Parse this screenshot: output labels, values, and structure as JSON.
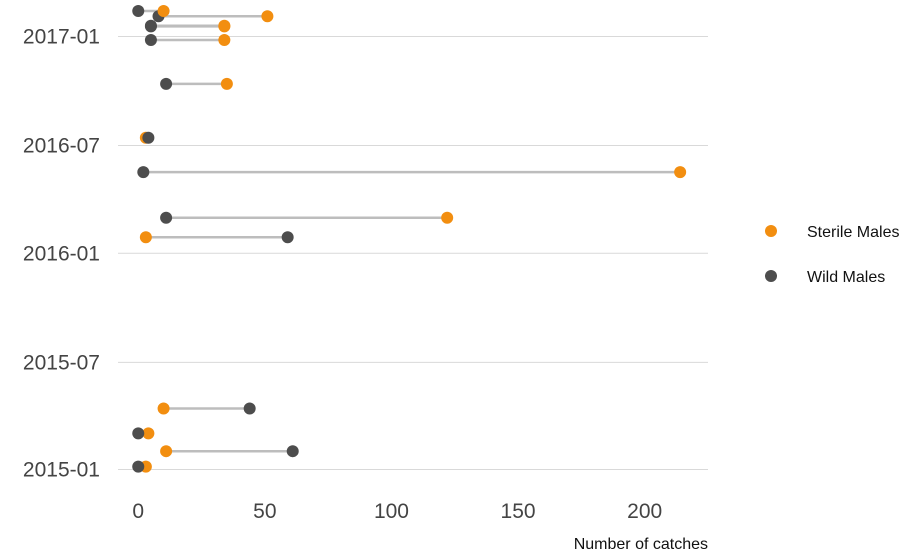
{
  "chart_data": {
    "type": "scatter",
    "subtype": "dumbbell",
    "title": "",
    "xlabel": "Number of catches",
    "ylabel": "",
    "xlim": [
      -8,
      225
    ],
    "xticks": [
      0,
      50,
      100,
      150,
      200
    ],
    "ylim": [
      "2014-12-11",
      "2017-02-18"
    ],
    "yticks": [
      "2015-01-01",
      "2015-07-01",
      "2016-01-01",
      "2016-07-01",
      "2017-01-01"
    ],
    "ytick_labels": [
      "2015-01",
      "2015-07",
      "2016-01",
      "2016-07",
      "2017-01"
    ],
    "grid": "horizontal",
    "legend_position": "right",
    "series": [
      {
        "name": "Sterile Males",
        "key": "sterile",
        "color": "#f28e10"
      },
      {
        "name": "Wild Males",
        "key": "wild",
        "color": "#4d4d4d"
      }
    ],
    "connector_color": "#bdbdbd",
    "dates": [
      "2015-01-06",
      "2015-02-01",
      "2015-03-03",
      "2015-04-14",
      "2016-01-28",
      "2016-03-01",
      "2016-05-17",
      "2016-07-14",
      "2016-10-13",
      "2016-12-26",
      "2017-01-18",
      "2017-01-19",
      "2017-02-04",
      "2017-02-13"
    ],
    "sterile": [
      3,
      11,
      4,
      10,
      3,
      122,
      214,
      3,
      35,
      34,
      34,
      34,
      51,
      10
    ],
    "wild": [
      0,
      61,
      0,
      44,
      59,
      11,
      2,
      4,
      11,
      5,
      5,
      5,
      8,
      0
    ]
  }
}
